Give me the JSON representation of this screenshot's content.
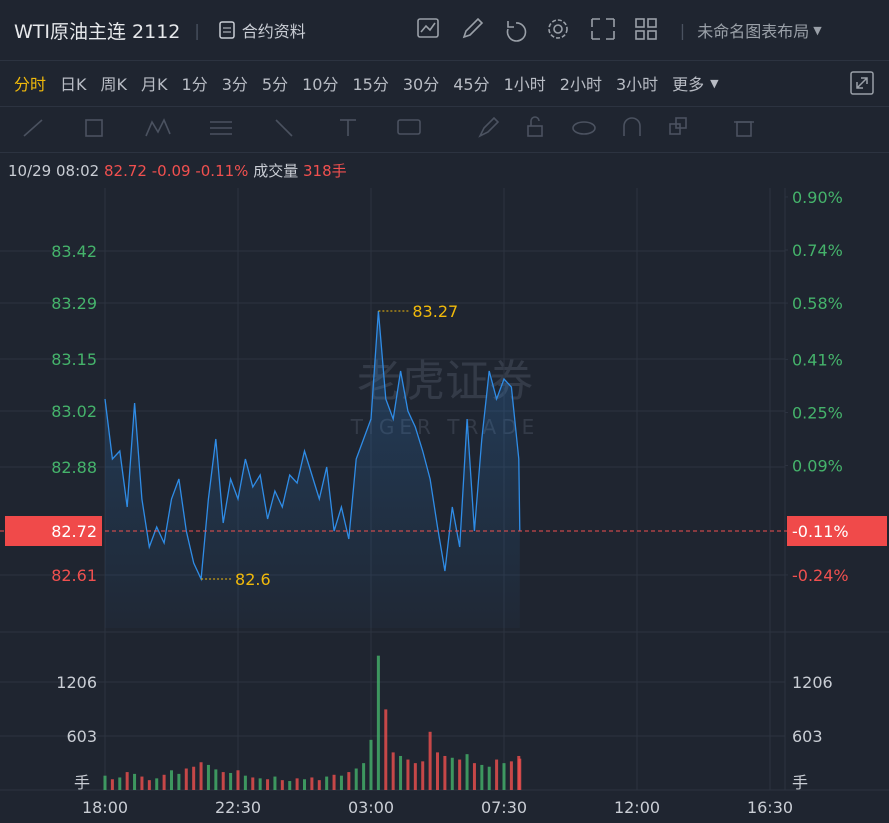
{
  "header": {
    "title": "WTI原油主连 2112",
    "info": "合约资料",
    "layout": "未命名图表布局"
  },
  "periods": [
    "分时",
    "日K",
    "周K",
    "月K",
    "1分",
    "3分",
    "5分",
    "10分",
    "15分",
    "30分",
    "45分",
    "1小时",
    "2小时",
    "3小时",
    "更多"
  ],
  "active_period": 0,
  "quote": {
    "time": "10/29 08:02",
    "change": "-0.09",
    "pct": "-0.11%",
    "volume_label": "成交量",
    "volume": "318手"
  },
  "chart_data": {
    "type": "line",
    "watermark": {
      "name": "老虎证券",
      "sub": "TIGER TRADE"
    },
    "color": "#2f8ce6",
    "up_color": "#45b36b",
    "down_color": "#f0504f",
    "grid": true,
    "last": 82.72,
    "xlim": [
      "18:00",
      "16:30"
    ],
    "xticks": [
      "18:00",
      "22:30",
      "03:00",
      "07:30",
      "12:00",
      "16:30"
    ],
    "ylim": [
      82.4775,
      83.5725
    ],
    "yticks": [
      83.42,
      83.29,
      83.15,
      83.02,
      82.88,
      82.61
    ],
    "y2lim": [
      -0.4,
      0.921
    ],
    "y2ticks": [
      {
        "value": 0.9,
        "label": "0.90%"
      },
      {
        "value": 0.74,
        "label": "0.74%"
      },
      {
        "value": 0.58,
        "label": "0.58%"
      },
      {
        "value": 0.41,
        "label": "0.41%"
      },
      {
        "value": 0.25,
        "label": "0.25%"
      },
      {
        "value": 0.09,
        "label": "0.09%"
      },
      {
        "value": -0.24,
        "label": "-0.24%"
      }
    ],
    "x": [
      "18:00",
      "18:15",
      "18:30",
      "18:45",
      "19:00",
      "19:15",
      "19:30",
      "19:45",
      "20:00",
      "20:15",
      "20:30",
      "20:45",
      "21:00",
      "21:15",
      "21:30",
      "21:45",
      "22:00",
      "22:15",
      "22:30",
      "22:45",
      "23:00",
      "23:15",
      "23:30",
      "23:45",
      "00:00",
      "00:15",
      "00:30",
      "00:45",
      "01:00",
      "01:15",
      "01:30",
      "01:45",
      "02:00",
      "02:15",
      "02:30",
      "02:45",
      "03:00",
      "03:15",
      "03:30",
      "03:45",
      "04:00",
      "04:15",
      "04:30",
      "04:45",
      "05:00",
      "05:15",
      "05:30",
      "05:45",
      "06:00",
      "06:15",
      "06:30",
      "06:45",
      "07:00",
      "07:15",
      "07:30",
      "07:45",
      "08:00",
      "08:02"
    ],
    "values": [
      83.05,
      82.9,
      82.92,
      82.78,
      83.04,
      82.8,
      82.68,
      82.73,
      82.69,
      82.8,
      82.85,
      82.72,
      82.64,
      82.6,
      82.8,
      82.95,
      82.74,
      82.85,
      82.8,
      82.9,
      82.83,
      82.86,
      82.75,
      82.82,
      82.78,
      82.86,
      82.84,
      82.92,
      82.86,
      82.8,
      82.88,
      82.72,
      82.78,
      82.7,
      82.9,
      82.95,
      83.0,
      83.27,
      83.05,
      83.0,
      83.12,
      83.02,
      82.98,
      82.92,
      82.85,
      82.73,
      82.62,
      82.78,
      82.68,
      83.0,
      82.72,
      82.95,
      83.12,
      83.05,
      83.1,
      83.08,
      82.9,
      82.72
    ],
    "volume": [
      160,
      120,
      140,
      200,
      180,
      150,
      110,
      130,
      170,
      220,
      180,
      240,
      260,
      310,
      280,
      230,
      200,
      190,
      220,
      160,
      140,
      130,
      120,
      150,
      110,
      100,
      130,
      120,
      140,
      110,
      150,
      170,
      160,
      200,
      240,
      300,
      560,
      1500,
      900,
      420,
      380,
      340,
      300,
      320,
      650,
      420,
      380,
      360,
      340,
      400,
      300,
      280,
      260,
      340,
      300,
      320,
      380,
      350
    ],
    "volume_ylim": [
      0,
      1675
    ],
    "volume_yticks": [
      1206,
      603
    ],
    "volume_unit": "手",
    "annotations": [
      {
        "x": "03:15",
        "value": 83.27
      },
      {
        "x": "21:15",
        "value": 82.6
      }
    ]
  }
}
